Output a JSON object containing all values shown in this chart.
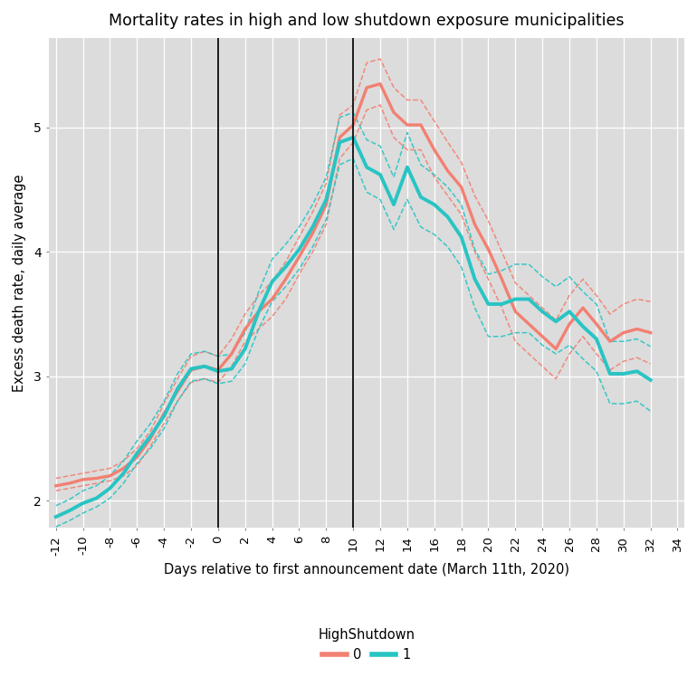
{
  "title": "Mortality rates in high and low shutdown exposure municipalities",
  "xlabel": "Days relative to first announcement date (March 11th, 2020)",
  "ylabel": "Excess death rate, daily average",
  "background_color": "#dcdcdc",
  "vlines": [
    0,
    10
  ],
  "xlim": [
    -12.5,
    34.5
  ],
  "ylim": [
    1.78,
    5.72
  ],
  "xticks": [
    -12,
    -10,
    -8,
    -6,
    -4,
    -2,
    0,
    2,
    4,
    6,
    8,
    10,
    12,
    14,
    16,
    18,
    20,
    22,
    24,
    26,
    28,
    30,
    32,
    34
  ],
  "yticks": [
    2,
    3,
    4,
    5
  ],
  "salmon_color": "#F28072",
  "teal_color": "#28C4C4",
  "x": [
    -12,
    -11,
    -10,
    -9,
    -8,
    -7,
    -6,
    -5,
    -4,
    -3,
    -2,
    -1,
    0,
    1,
    2,
    3,
    4,
    5,
    6,
    7,
    8,
    9,
    10,
    11,
    12,
    13,
    14,
    15,
    16,
    17,
    18,
    19,
    20,
    21,
    22,
    23,
    24,
    25,
    26,
    27,
    28,
    29,
    30,
    31,
    32
  ],
  "salmon_main": [
    2.12,
    2.14,
    2.17,
    2.18,
    2.2,
    2.26,
    2.35,
    2.5,
    2.7,
    2.88,
    3.05,
    3.08,
    3.05,
    3.18,
    3.38,
    3.52,
    3.62,
    3.78,
    3.96,
    4.15,
    4.38,
    4.92,
    5.02,
    5.32,
    5.35,
    5.12,
    5.02,
    5.02,
    4.82,
    4.65,
    4.52,
    4.22,
    4.02,
    3.78,
    3.52,
    3.42,
    3.32,
    3.22,
    3.42,
    3.55,
    3.42,
    3.28,
    3.35,
    3.38,
    3.35
  ],
  "salmon_ci_low": [
    2.08,
    2.1,
    2.12,
    2.14,
    2.16,
    2.2,
    2.28,
    2.44,
    2.62,
    2.8,
    2.95,
    2.98,
    2.95,
    3.08,
    3.28,
    3.38,
    3.48,
    3.62,
    3.82,
    4.0,
    4.22,
    4.75,
    4.88,
    5.14,
    5.18,
    4.92,
    4.82,
    4.82,
    4.6,
    4.45,
    4.3,
    4.0,
    3.78,
    3.55,
    3.28,
    3.18,
    3.08,
    2.98,
    3.18,
    3.32,
    3.18,
    3.05,
    3.12,
    3.15,
    3.1
  ],
  "salmon_ci_high": [
    2.18,
    2.2,
    2.22,
    2.24,
    2.26,
    2.32,
    2.42,
    2.56,
    2.78,
    2.98,
    3.16,
    3.2,
    3.16,
    3.3,
    3.5,
    3.65,
    3.76,
    3.92,
    4.12,
    4.32,
    4.55,
    5.1,
    5.18,
    5.52,
    5.55,
    5.32,
    5.22,
    5.22,
    5.05,
    4.88,
    4.72,
    4.45,
    4.25,
    4.0,
    3.75,
    3.65,
    3.55,
    3.45,
    3.65,
    3.78,
    3.65,
    3.5,
    3.58,
    3.62,
    3.6
  ],
  "teal_main": [
    1.87,
    1.92,
    1.98,
    2.02,
    2.1,
    2.22,
    2.38,
    2.52,
    2.68,
    2.9,
    3.06,
    3.08,
    3.04,
    3.06,
    3.22,
    3.52,
    3.76,
    3.88,
    4.02,
    4.2,
    4.42,
    4.88,
    4.92,
    4.68,
    4.62,
    4.38,
    4.68,
    4.44,
    4.38,
    4.28,
    4.12,
    3.78,
    3.58,
    3.58,
    3.62,
    3.62,
    3.52,
    3.44,
    3.52,
    3.4,
    3.3,
    3.02,
    3.02,
    3.04,
    2.97
  ],
  "teal_ci_low": [
    1.79,
    1.84,
    1.9,
    1.95,
    2.02,
    2.14,
    2.3,
    2.42,
    2.58,
    2.8,
    2.96,
    2.98,
    2.94,
    2.96,
    3.1,
    3.38,
    3.6,
    3.72,
    3.86,
    4.04,
    4.26,
    4.7,
    4.75,
    4.48,
    4.42,
    4.18,
    4.42,
    4.2,
    4.14,
    4.04,
    3.88,
    3.55,
    3.32,
    3.32,
    3.35,
    3.35,
    3.25,
    3.18,
    3.25,
    3.14,
    3.04,
    2.78,
    2.78,
    2.8,
    2.72
  ],
  "teal_ci_high": [
    1.96,
    2.01,
    2.08,
    2.12,
    2.2,
    2.32,
    2.48,
    2.62,
    2.8,
    3.02,
    3.18,
    3.2,
    3.16,
    3.18,
    3.35,
    3.68,
    3.94,
    4.06,
    4.2,
    4.38,
    4.6,
    5.08,
    5.12,
    4.9,
    4.85,
    4.6,
    4.96,
    4.7,
    4.62,
    4.52,
    4.38,
    4.02,
    3.82,
    3.85,
    3.9,
    3.9,
    3.8,
    3.72,
    3.8,
    3.68,
    3.58,
    3.28,
    3.28,
    3.3,
    3.24
  ]
}
